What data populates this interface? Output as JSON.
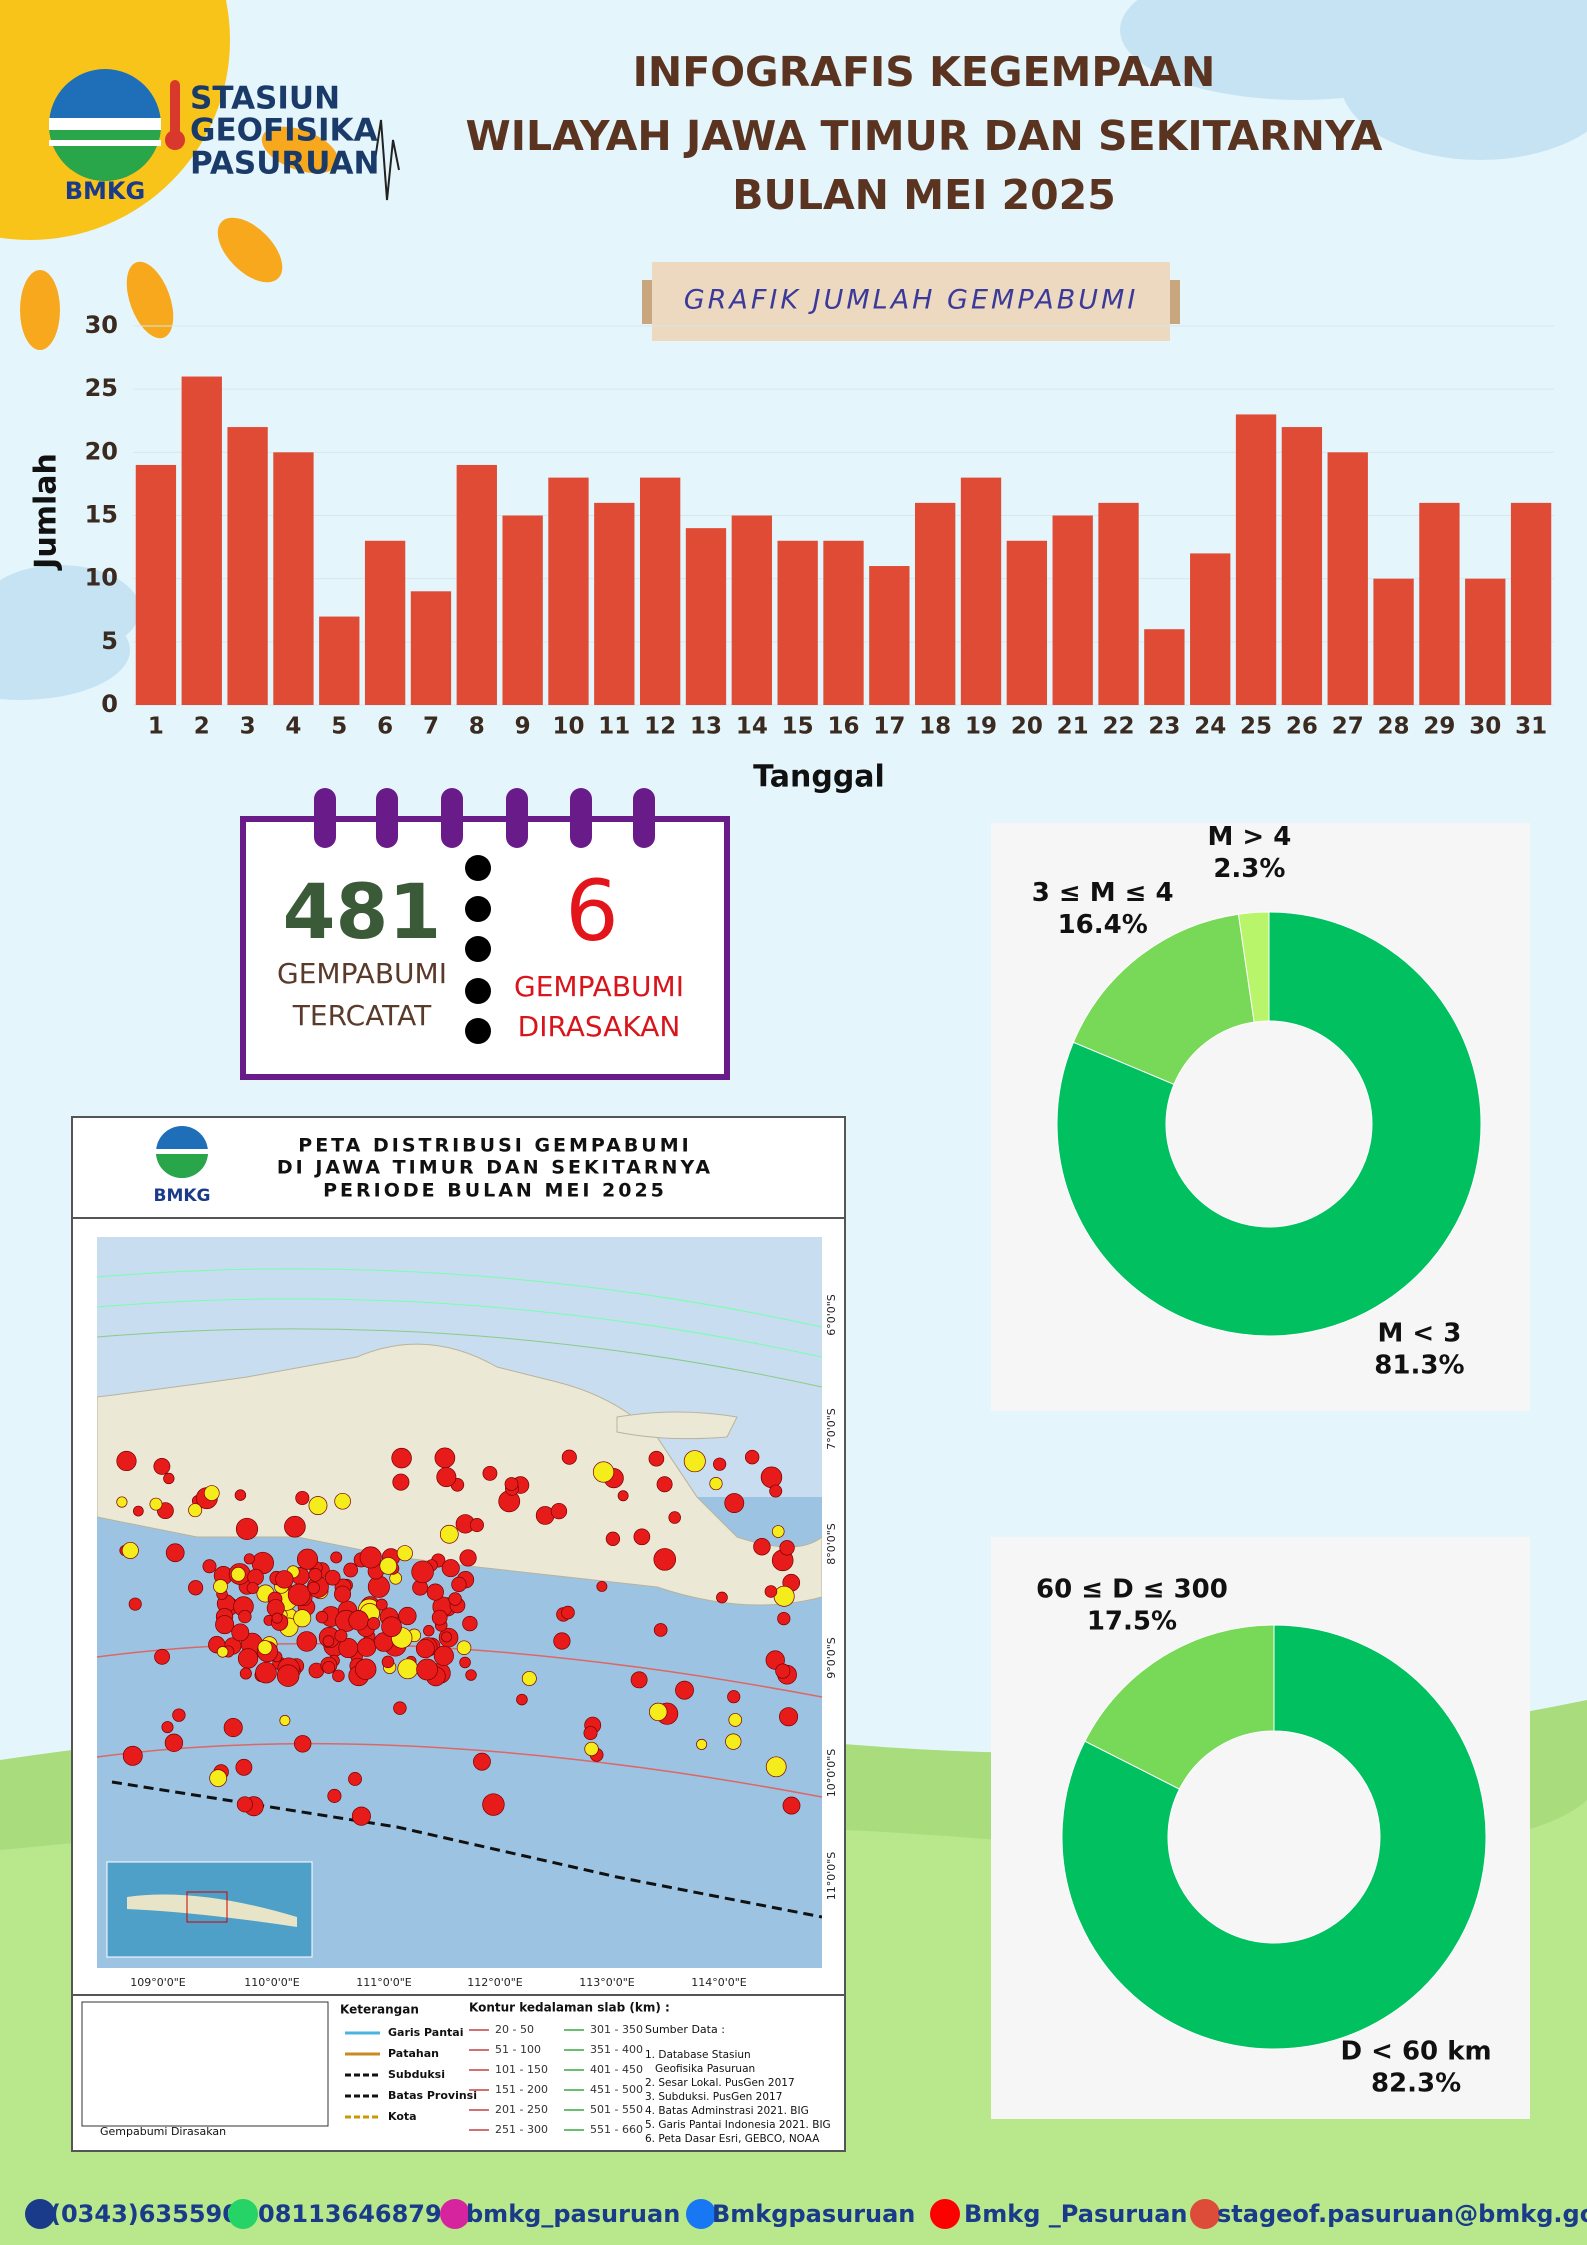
{
  "header": {
    "logo_text": "BMKG",
    "org": [
      "STASIUN",
      "GEOFISIKA",
      "PASURUAN"
    ],
    "title_lines": [
      "INFOGRAFIS KEGEMPAAN",
      "WILAYAH JAWA TIMUR DAN SEKITARNYA",
      "BULAN MEI 2025"
    ]
  },
  "chart_data": [
    {
      "type": "bar",
      "title": "GRAFIK JUMLAH GEMPABUMI",
      "x_label": "Tanggal",
      "y_label": "Jumlah",
      "categories": [
        "1",
        "2",
        "3",
        "4",
        "5",
        "6",
        "7",
        "8",
        "9",
        "10",
        "11",
        "12",
        "13",
        "14",
        "15",
        "16",
        "17",
        "18",
        "19",
        "20",
        "21",
        "22",
        "23",
        "24",
        "25",
        "26",
        "27",
        "28",
        "29",
        "30",
        "31"
      ],
      "values": [
        19,
        26,
        22,
        20,
        7,
        13,
        9,
        19,
        15,
        18,
        16,
        18,
        14,
        15,
        13,
        13,
        11,
        16,
        18,
        13,
        15,
        16,
        6,
        12,
        23,
        22,
        20,
        10,
        16,
        10,
        16
      ],
      "color": "#e04b35",
      "ylim": [
        0,
        30
      ],
      "yticks": [
        0,
        5,
        10,
        15,
        20,
        25,
        30
      ],
      "grid": true
    },
    {
      "type": "donut",
      "categories": [
        "M < 3",
        "3 ≤ M ≤ 4",
        "M > 4"
      ],
      "values": [
        81.3,
        16.4,
        2.3
      ],
      "value_labels": [
        "81.3%",
        "16.4%",
        "2.3%"
      ],
      "colors": [
        "#00c060",
        "#77d957",
        "#b8f56a"
      ]
    },
    {
      "type": "donut",
      "categories": [
        "D < 60 km",
        "60 ≤ D ≤ 300"
      ],
      "values": [
        82.3,
        17.5
      ],
      "value_labels": [
        "82.3%",
        "17.5%"
      ],
      "colors": [
        "#00c060",
        "#77d957"
      ]
    }
  ],
  "stats": {
    "recorded": {
      "count": 481,
      "lines": [
        "GEMPABUMI",
        "TERCATAT"
      ]
    },
    "felt": {
      "count": 6,
      "lines": [
        "GEMPABUMI",
        "DIRASAKAN"
      ]
    }
  },
  "map": {
    "logo_text": "BMKG",
    "title_lines": [
      "PETA DISTRIBUSI GEMPABUMI",
      "DI JAWA TIMUR DAN SEKITARNYA",
      "PERIODE BULAN  MEI  2025"
    ],
    "lon_labels": [
      "109°0'0\"E",
      "110°0'0\"E",
      "111°0'0\"E",
      "112°0'0\"E",
      "113°0'0\"E",
      "114°0'0\"E"
    ],
    "lat_labels": [
      "6°0'0\"S",
      "7°0'0\"S",
      "8°0'0\"S",
      "9°0'0\"S",
      "10°0'0\"S",
      "11°0'0\"S"
    ],
    "legend_title": "Keterangan",
    "legend_items": [
      "Garis Pantai",
      "Patahan",
      "Subduksi",
      "Batas Provinsi",
      "Kota"
    ],
    "felt_label": "Gempabumi Dirasakan",
    "contour_title": "Kontur kedalaman slab (km) :",
    "contours": [
      "20 - 50",
      "51 - 100",
      "101 - 150",
      "151 - 200",
      "201 - 250",
      "251 - 300",
      "301 - 350",
      "351 - 400",
      "401 - 450",
      "451 - 500",
      "501 - 550",
      "551 - 660"
    ],
    "sources_title": "Sumber Data :",
    "sources": [
      "1. Database Stasiun",
      "Geofisika Pasuruan",
      "2. Sesar Lokal. PusGen 2017",
      "3. Subduksi. PusGen 2017",
      "4. Batas Adminstrasi 2021. BIG",
      "5. Garis Pantai Indonesia 2021. BIG",
      "6. Peta Dasar Esri, GEBCO, NOAA"
    ]
  },
  "footer": [
    "(0343)635590",
    "08113646879",
    "bmkg_pasuruan",
    "Bmkgpasuruan",
    "Bmkg _Pasuruan",
    "stageof.pasuruan@bmkg.go.id"
  ]
}
